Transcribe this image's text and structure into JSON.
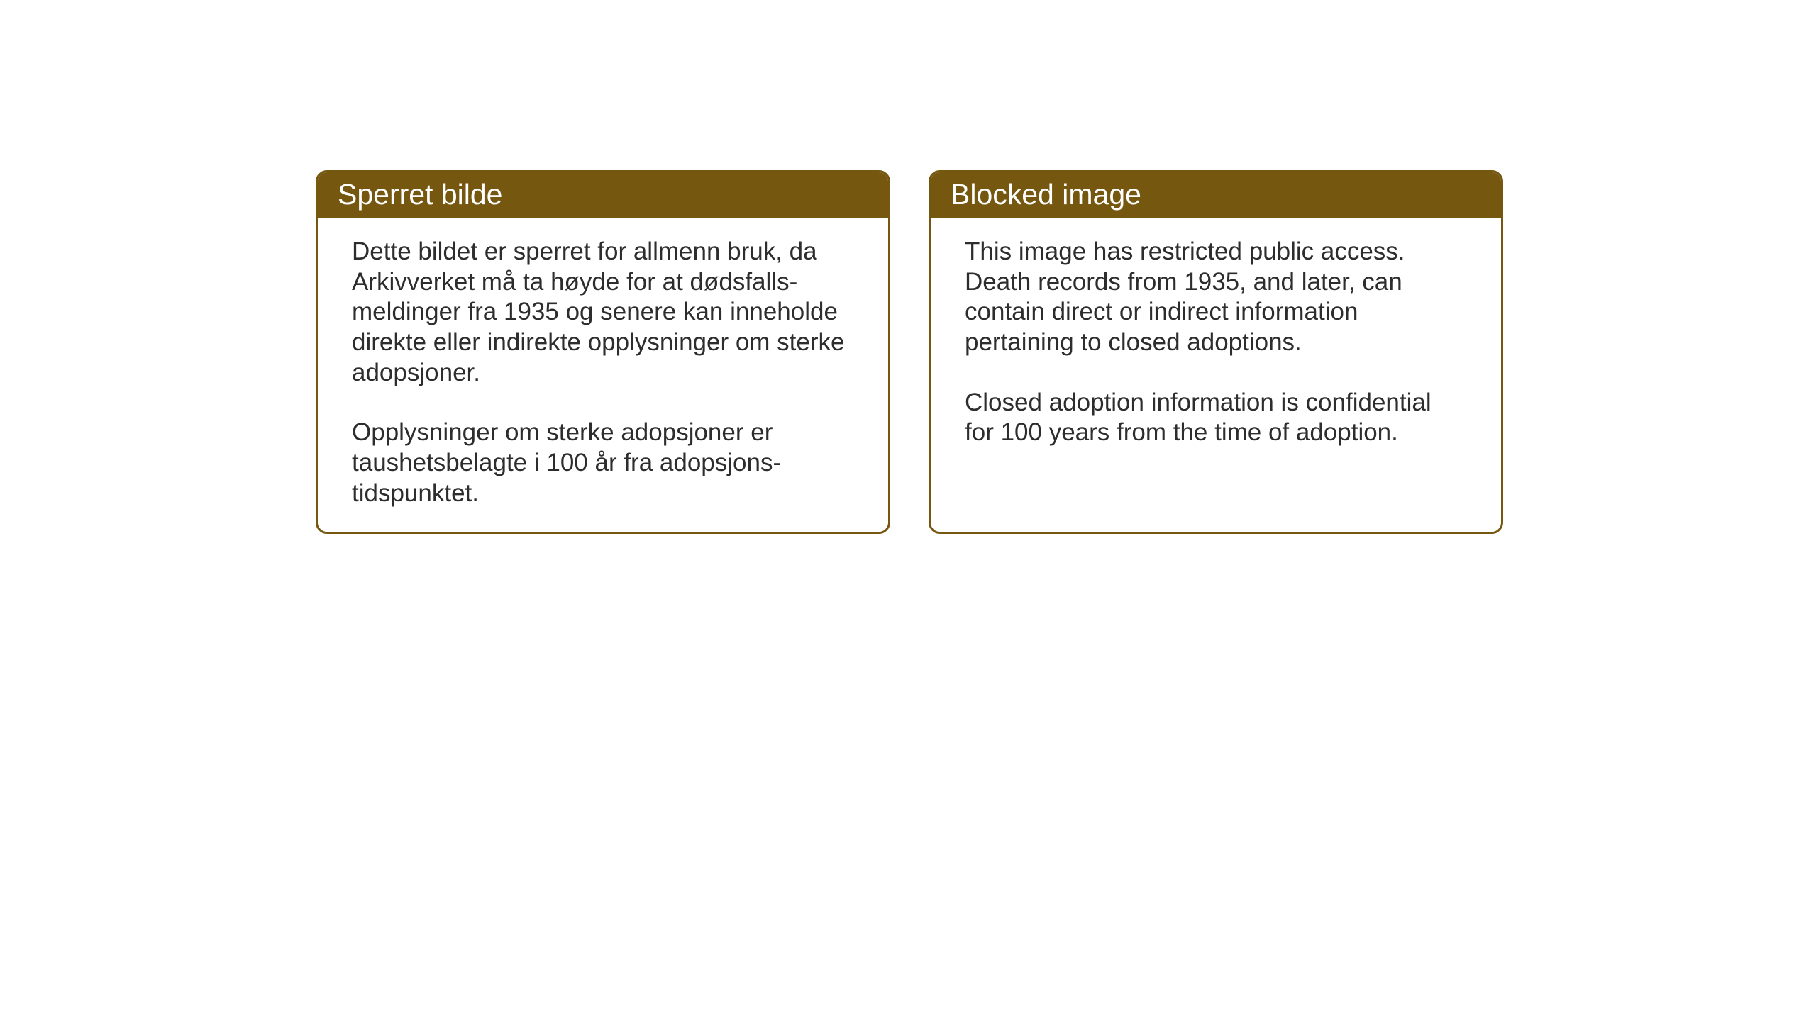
{
  "layout": {
    "background_color": "#ffffff",
    "card_border_color": "#755710",
    "card_header_bg": "#755710",
    "card_header_text_color": "#ffffff",
    "body_text_color": "#2d2d2d",
    "card_border_radius": 16,
    "card_border_width": 3,
    "header_fontsize": 41,
    "body_fontsize": 35
  },
  "cards": {
    "norwegian": {
      "title": "Sperret bilde",
      "paragraph1": "Dette bildet er sperret for allmenn bruk, da Arkivverket må ta høyde for at dødsfalls-meldinger fra 1935 og senere kan inneholde direkte eller indirekte opplysninger om sterke adopsjoner.",
      "paragraph2": "Opplysninger om sterke adopsjoner er taushetsbelagte i 100 år fra adopsjons-tidspunktet."
    },
    "english": {
      "title": "Blocked image",
      "paragraph1": "This image has restricted public access. Death records from 1935, and later, can contain direct or indirect information pertaining to closed adoptions.",
      "paragraph2": "Closed adoption information is confidential for 100 years from the time of adoption."
    }
  }
}
